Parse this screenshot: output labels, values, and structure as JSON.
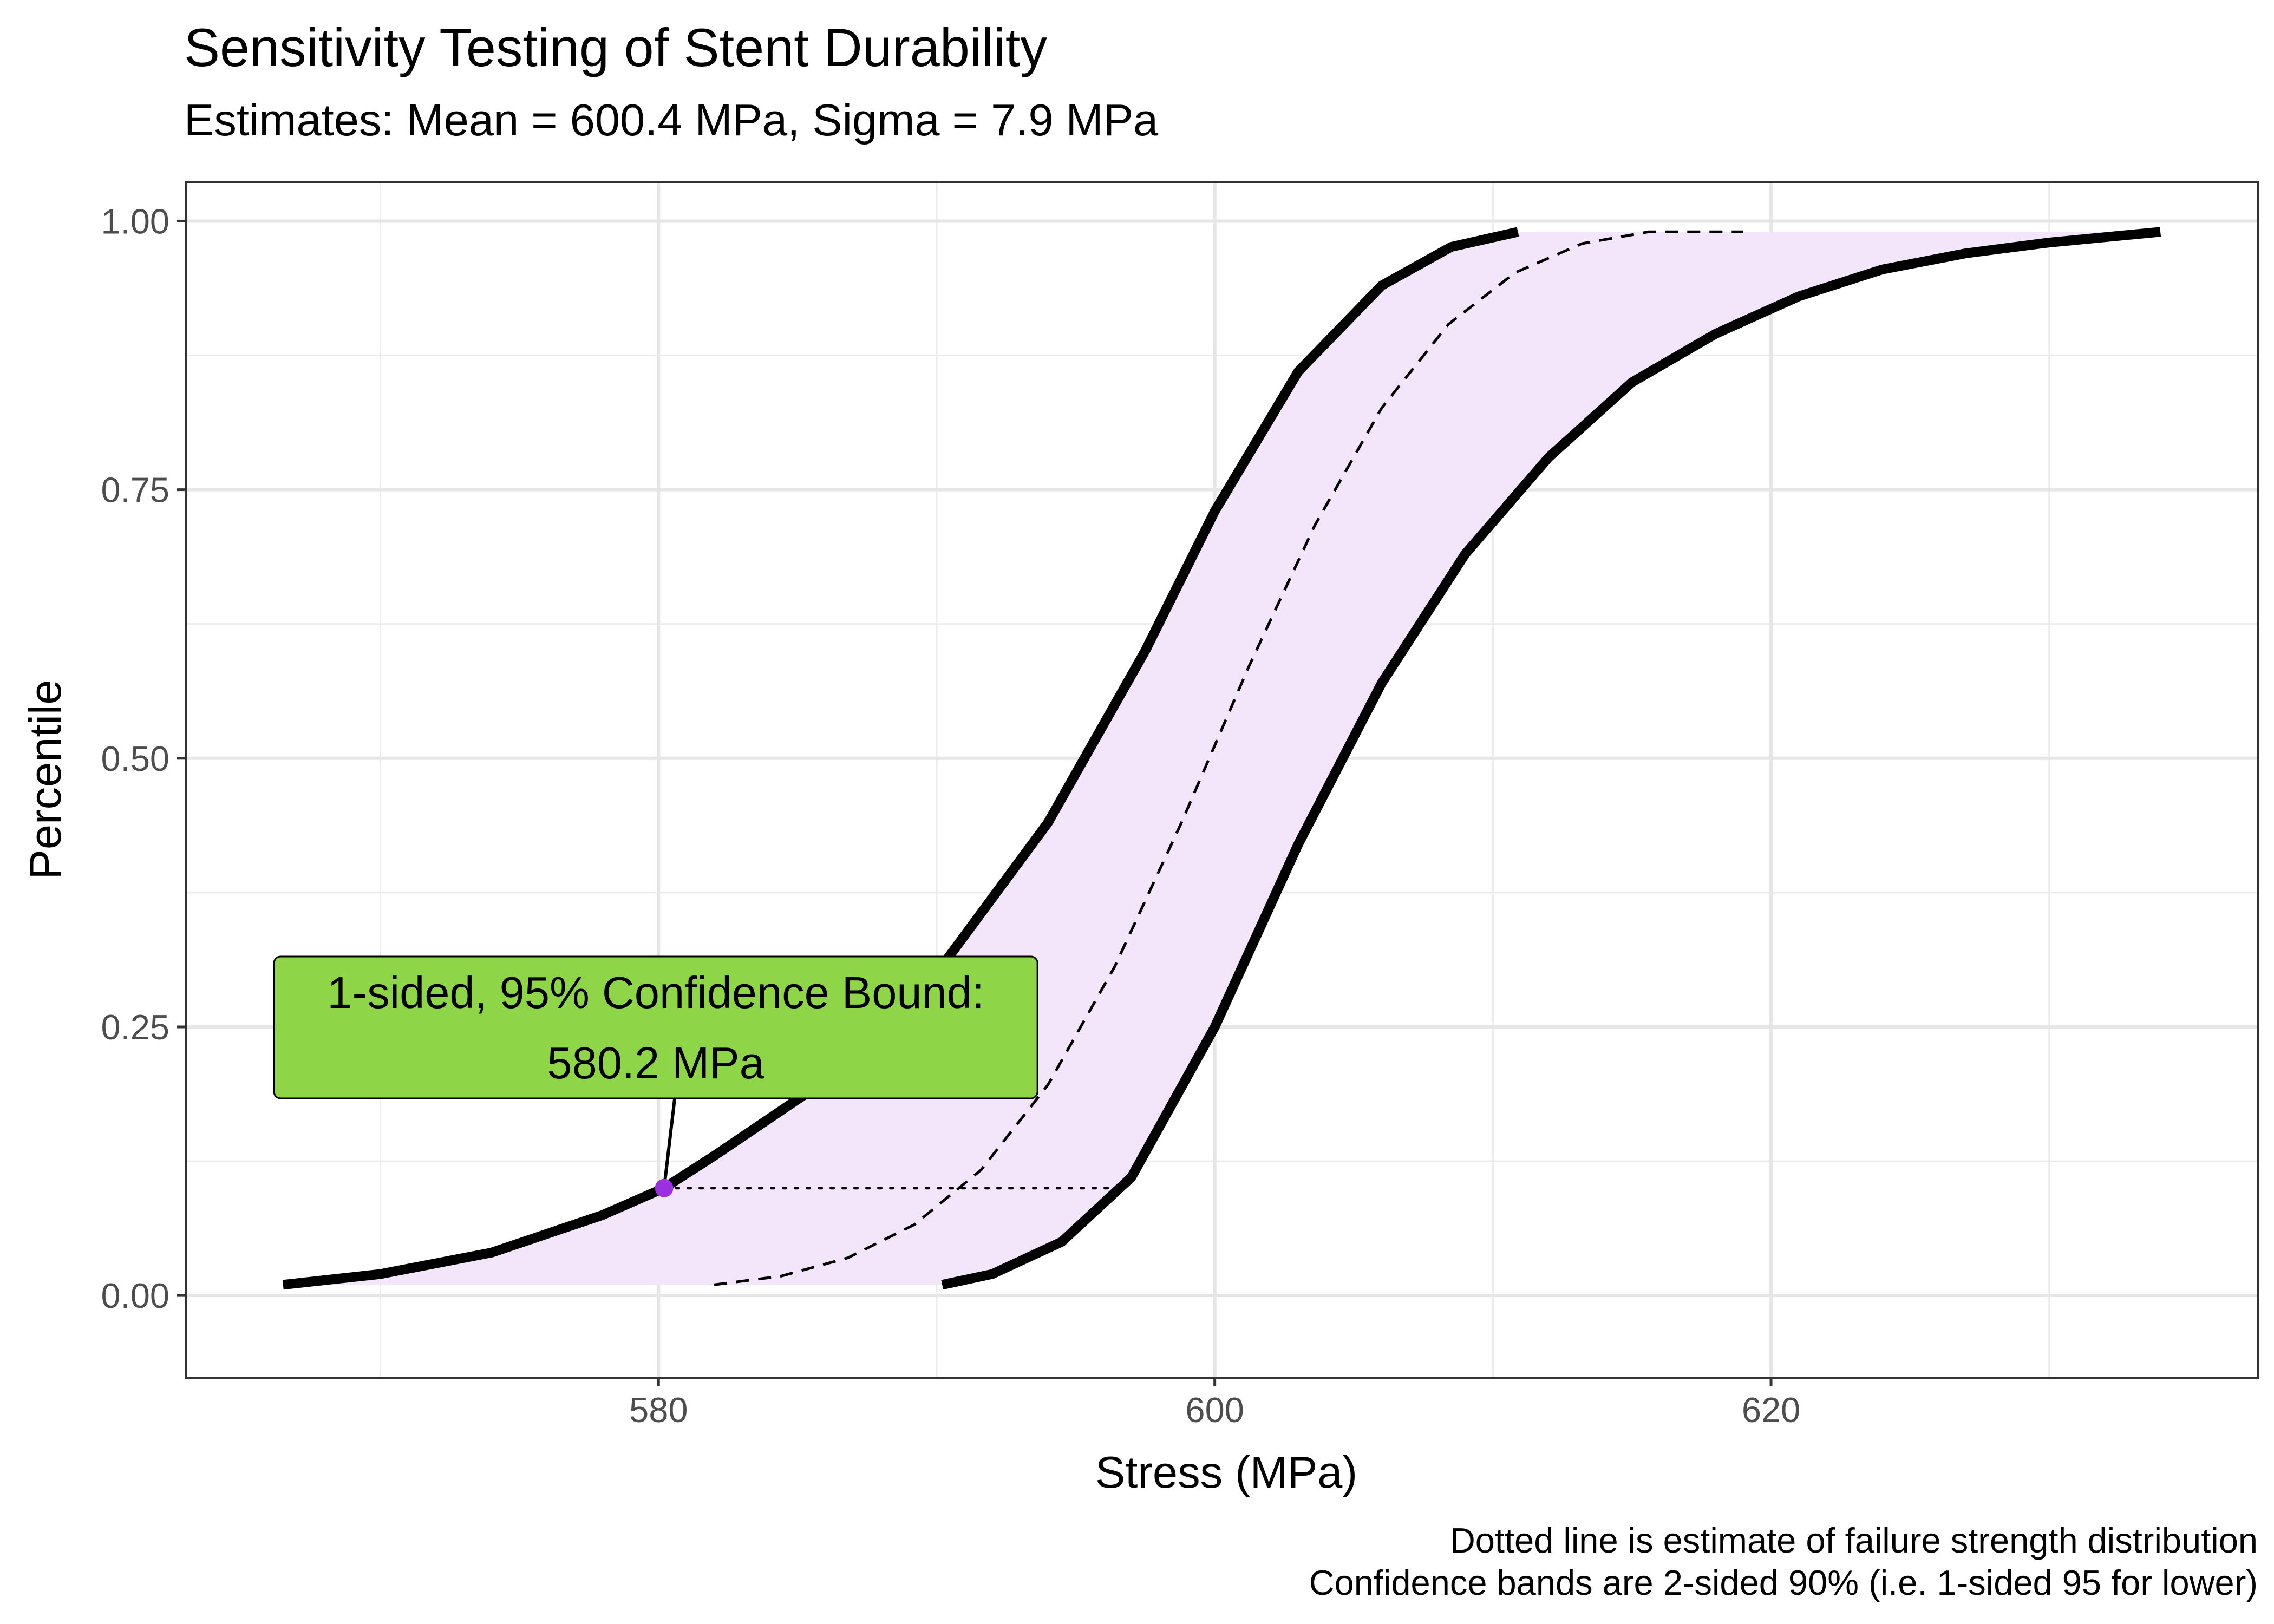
{
  "chart_data": {
    "type": "line",
    "title": "Sensitivity Testing of Stent Durability",
    "subtitle": "Estimates: Mean = 600.4 MPa, Sigma = 7.9 MPa",
    "xlabel": "Stress (MPa)",
    "ylabel": "Percentile",
    "xlim": [
      563,
      637.5
    ],
    "ylim": [
      -0.0765,
      1.0365
    ],
    "x_ticks": [
      "580",
      "600",
      "620"
    ],
    "y_ticks": [
      "0.00",
      "0.25",
      "0.50",
      "0.75",
      "1.00"
    ],
    "x_tick_values": [
      580,
      600,
      620
    ],
    "y_tick_values": [
      0,
      0.25,
      0.5,
      0.75,
      1.0
    ],
    "grid": true,
    "theme": "black-white bordered panel",
    "series": [
      {
        "role": "estimate",
        "style": "dashed",
        "x": [
          582.0,
          584.4,
          586.8,
          589.2,
          591.6,
          594.0,
          596.4,
          598.8,
          601.2,
          603.6,
          606.0,
          608.4,
          610.8,
          613.2,
          615.6,
          618.0,
          619.0
        ],
        "y": [
          0.01,
          0.018,
          0.035,
          0.066,
          0.117,
          0.196,
          0.306,
          0.44,
          0.584,
          0.717,
          0.826,
          0.904,
          0.952,
          0.979,
          0.99,
          0.99,
          0.99
        ]
      },
      {
        "role": "lower-confidence-bound",
        "style": "thick-solid",
        "x": [
          566.5,
          570.0,
          574.0,
          578.0,
          580.2,
          582.0,
          586.0,
          590.0,
          594.0,
          597.5,
          600.0,
          603.0,
          606.0,
          608.5,
          610.9
        ],
        "y": [
          0.01,
          0.02,
          0.04,
          0.075,
          0.1,
          0.13,
          0.2,
          0.3,
          0.44,
          0.6,
          0.73,
          0.86,
          0.94,
          0.976,
          0.99
        ]
      },
      {
        "role": "upper-confidence-bound",
        "style": "thick-solid",
        "x": [
          590.2,
          592.0,
          594.5,
          597.0,
          600.0,
          603.0,
          606.0,
          609.0,
          612.0,
          615.0,
          618.0,
          621.0,
          624.0,
          627.0,
          630.0,
          634.0
        ],
        "y": [
          0.01,
          0.02,
          0.05,
          0.11,
          0.25,
          0.42,
          0.57,
          0.69,
          0.78,
          0.85,
          0.895,
          0.93,
          0.955,
          0.97,
          0.98,
          0.99
        ]
      }
    ],
    "band": {
      "fill": "#f3e5fa",
      "between": [
        "lower-confidence-bound",
        "upper-confidence-bound"
      ],
      "y_range": [
        0.01,
        0.99
      ]
    },
    "reference_line": {
      "style": "dotted",
      "y": 0.1,
      "x_range": [
        580.2,
        596.5
      ]
    },
    "highlight_point": {
      "x": 580.2,
      "y": 0.1,
      "color": "#9b30e0"
    },
    "annotation": {
      "line1": "1-sided, 95% Confidence Bound:",
      "line2": "580.2 MPa",
      "fill": "#8ed647",
      "anchor_data": {
        "x": 580.2,
        "y": 0.1
      },
      "box_center_data": {
        "x": 579.9,
        "y": 0.2495
      }
    },
    "caption": [
      "Dotted line is estimate of failure strength distribution",
      "Confidence bands are 2-sided 90% (i.e. 1-sided 95 for lower)"
    ]
  }
}
